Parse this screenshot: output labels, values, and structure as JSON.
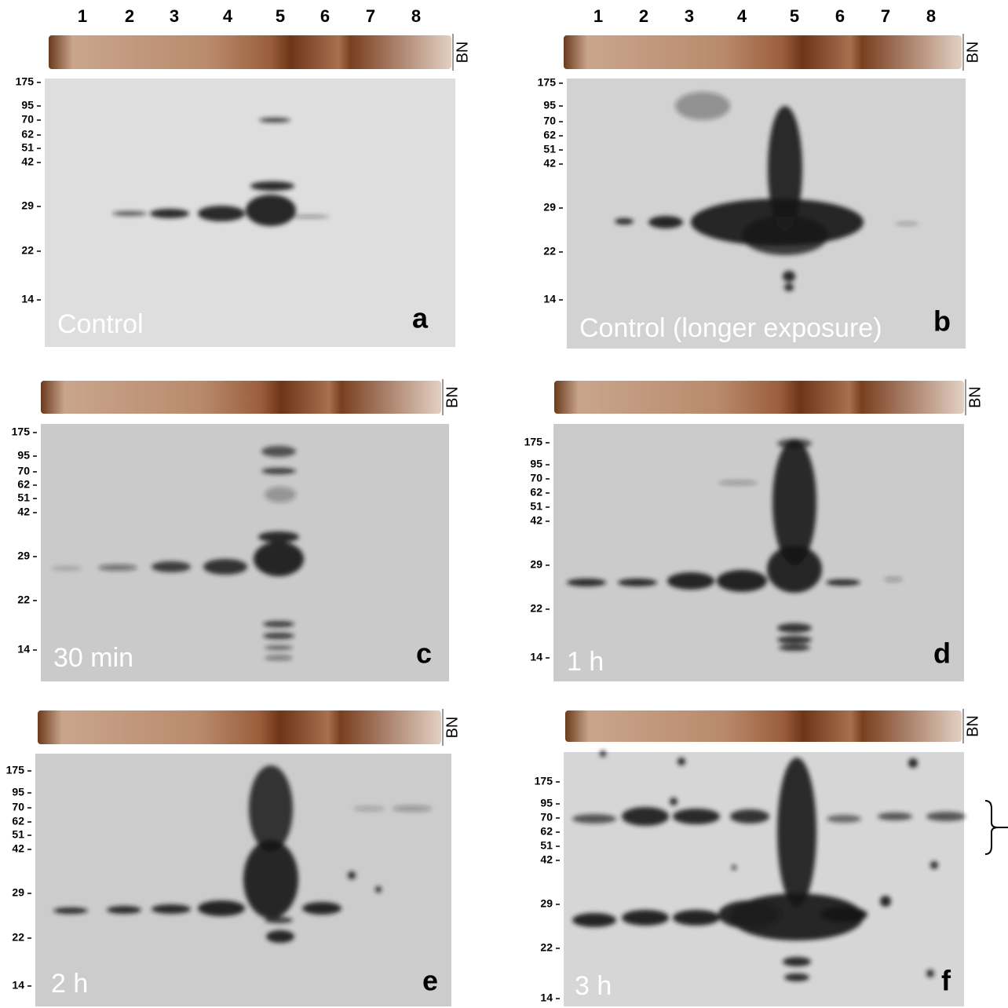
{
  "lanes": [
    "1",
    "2",
    "3",
    "4",
    "5",
    "6",
    "7",
    "8"
  ],
  "strip_label": "BN",
  "markers": [
    "175",
    "95",
    "70",
    "62",
    "51",
    "42",
    "29",
    "22",
    "14"
  ],
  "panels": [
    {
      "condition": "Control",
      "letter": "a"
    },
    {
      "condition": "Control (longer exposure)",
      "letter": "b"
    },
    {
      "condition": "30 min",
      "letter": "c"
    },
    {
      "condition": "1 h",
      "letter": "d"
    },
    {
      "condition": "2 h",
      "letter": "e"
    },
    {
      "condition": "3 h",
      "letter": "f"
    }
  ]
}
